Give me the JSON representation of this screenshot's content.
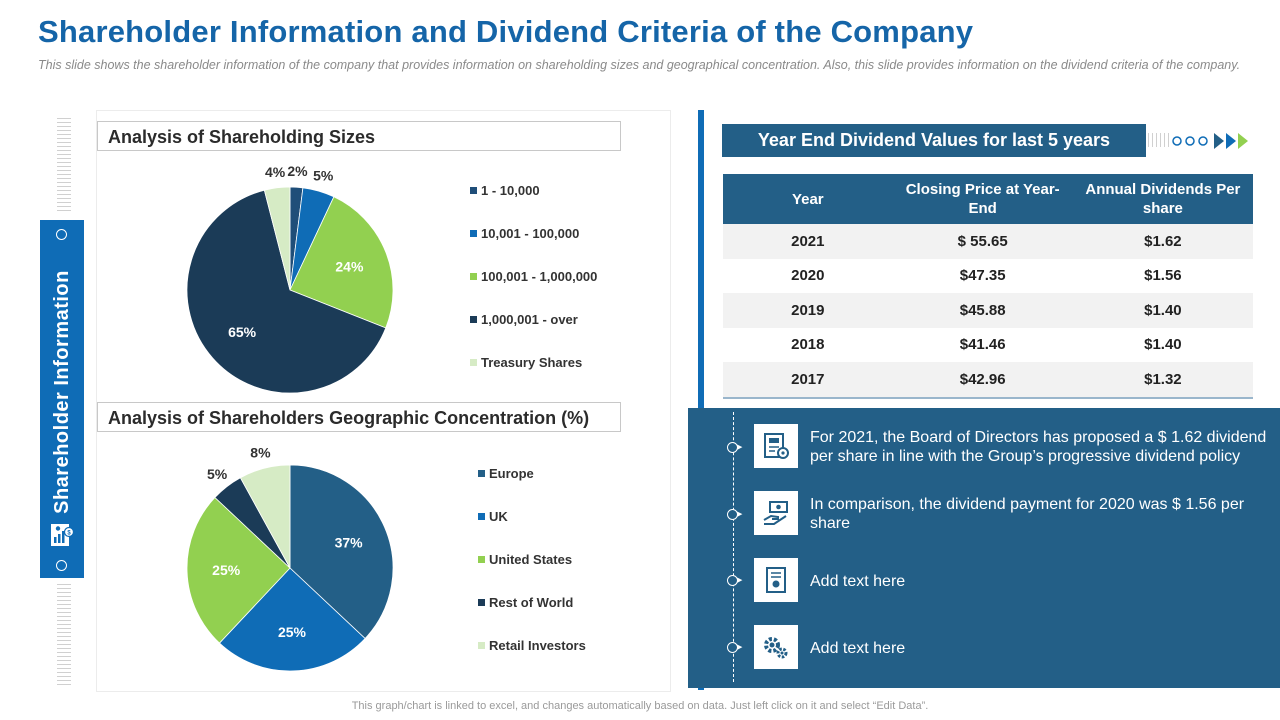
{
  "header": {
    "title": "Shareholder Information and Dividend Criteria of the Company",
    "subtitle": "This slide shows the shareholder information of the company that provides information on shareholding sizes and geographical concentration. Also, this slide provides information on the dividend criteria of the company."
  },
  "sidebar": {
    "label": "Shareholder Information",
    "icon": "chart-person-icon"
  },
  "chart_data": [
    {
      "type": "pie",
      "title": "Analysis of Shareholding Sizes",
      "categories": [
        "1 - 10,000",
        "10,001 - 100,000",
        "100,001 - 1,000,000",
        "1,000,001 - over",
        "Treasury Shares"
      ],
      "values": [
        2,
        5,
        24,
        65,
        4
      ],
      "labels": [
        "2%",
        "5%",
        "24%",
        "65%",
        "4%"
      ],
      "colors": [
        "#1f4e79",
        "#0f6cb6",
        "#92d050",
        "#1b3b57",
        "#d6ebc5"
      ],
      "legend": "right"
    },
    {
      "type": "pie",
      "title": "Analysis of Shareholders Geographic Concentration (%)",
      "categories": [
        "Europe",
        "UK",
        "United States",
        "Rest of World",
        "Retail Investors"
      ],
      "values": [
        37,
        25,
        25,
        5,
        8
      ],
      "labels": [
        "37%",
        "25%",
        "25%",
        "5%",
        "8%"
      ],
      "colors": [
        "#235f87",
        "#0f6cb6",
        "#92d050",
        "#1b3b57",
        "#d6ebc5"
      ],
      "legend": "right"
    }
  ],
  "dividends": {
    "title": "Year End Dividend Values for last 5 years",
    "headers": [
      "Year",
      "Closing Price at Year-End",
      "Annual Dividends Per share"
    ],
    "rows": [
      [
        "2021",
        "$ 55.65",
        "$1.62"
      ],
      [
        "2020",
        "$47.35",
        "$1.56"
      ],
      [
        "2019",
        "$45.88",
        "$1.40"
      ],
      [
        "2018",
        "$41.46",
        "$1.40"
      ],
      [
        "2017",
        "$42.96",
        "$1.32"
      ]
    ]
  },
  "info": [
    {
      "text": "For 2021, the Board of Directors has proposed a $ 1.62 dividend per share in line with the Group’s progressive dividend policy",
      "icon": "report-gear-icon"
    },
    {
      "text": "In comparison, the dividend payment for 2020 was $ 1.56 per share",
      "icon": "money-hand-icon"
    },
    {
      "text": "Add text here",
      "icon": "certificate-icon"
    },
    {
      "text": "Add text here",
      "icon": "gears-icon"
    }
  ],
  "footer": "This graph/chart is linked to excel,  and changes automatically based on data. Just left click on it and select “Edit Data”."
}
